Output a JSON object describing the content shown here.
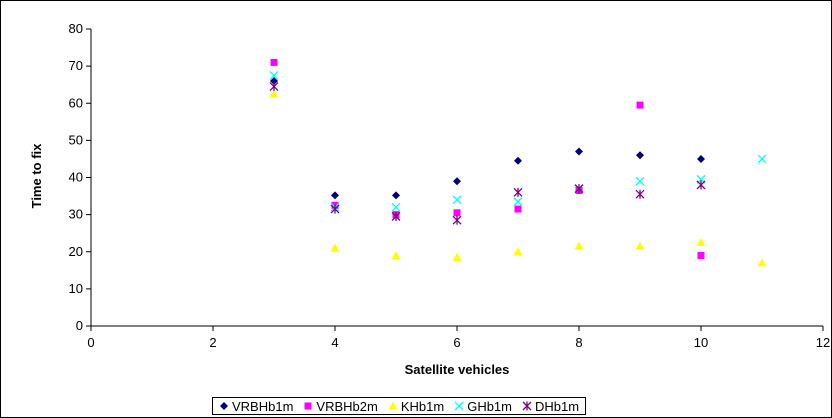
{
  "chart_data": {
    "type": "scatter",
    "title": "",
    "xlabel": "Satellite vehicles",
    "ylabel": "Time to fix",
    "xlim": [
      0,
      12
    ],
    "ylim": [
      0,
      80
    ],
    "xticks": [
      0,
      2,
      4,
      6,
      8,
      10,
      12
    ],
    "yticks": [
      0,
      10,
      20,
      30,
      40,
      50,
      60,
      70,
      80
    ],
    "grid": false,
    "legend_position": "bottom",
    "series": [
      {
        "name": "VRBHb1m",
        "marker": "diamond",
        "color": "#00007f",
        "points": [
          [
            3,
            66
          ],
          [
            4,
            35.2
          ],
          [
            5,
            35.2
          ],
          [
            6,
            39
          ],
          [
            7,
            44.5
          ],
          [
            8,
            47
          ],
          [
            9,
            46
          ],
          [
            10,
            45
          ]
        ]
      },
      {
        "name": "VRBHb2m",
        "marker": "square",
        "color": "#ff00ff",
        "points": [
          [
            3,
            71
          ],
          [
            4,
            32.5
          ],
          [
            5,
            30
          ],
          [
            6,
            30.5
          ],
          [
            7,
            31.5
          ],
          [
            8,
            36.5
          ],
          [
            9,
            59.5
          ],
          [
            10,
            19
          ]
        ]
      },
      {
        "name": "KHb1m",
        "marker": "triangle",
        "color": "#ffff00",
        "points": [
          [
            3,
            62.5
          ],
          [
            4,
            21
          ],
          [
            5,
            19
          ],
          [
            6,
            18.5
          ],
          [
            7,
            20
          ],
          [
            8,
            21.5
          ],
          [
            9,
            21.5
          ],
          [
            10,
            22.5
          ],
          [
            11,
            17
          ]
        ]
      },
      {
        "name": "GHb1m",
        "marker": "x",
        "color": "#00ffff",
        "points": [
          [
            3,
            67.5
          ],
          [
            4,
            32
          ],
          [
            5,
            32
          ],
          [
            6,
            34
          ],
          [
            7,
            33.5
          ],
          [
            8,
            37
          ],
          [
            9,
            39
          ],
          [
            10,
            39.5
          ],
          [
            11,
            45
          ]
        ]
      },
      {
        "name": "DHb1m",
        "marker": "star",
        "color": "#7f007f",
        "points": [
          [
            3,
            64.5
          ],
          [
            4,
            31.5
          ],
          [
            5,
            29.5
          ],
          [
            6,
            28.5
          ],
          [
            7,
            36
          ],
          [
            8,
            37
          ],
          [
            9,
            35.5
          ],
          [
            10,
            38
          ]
        ]
      }
    ]
  }
}
